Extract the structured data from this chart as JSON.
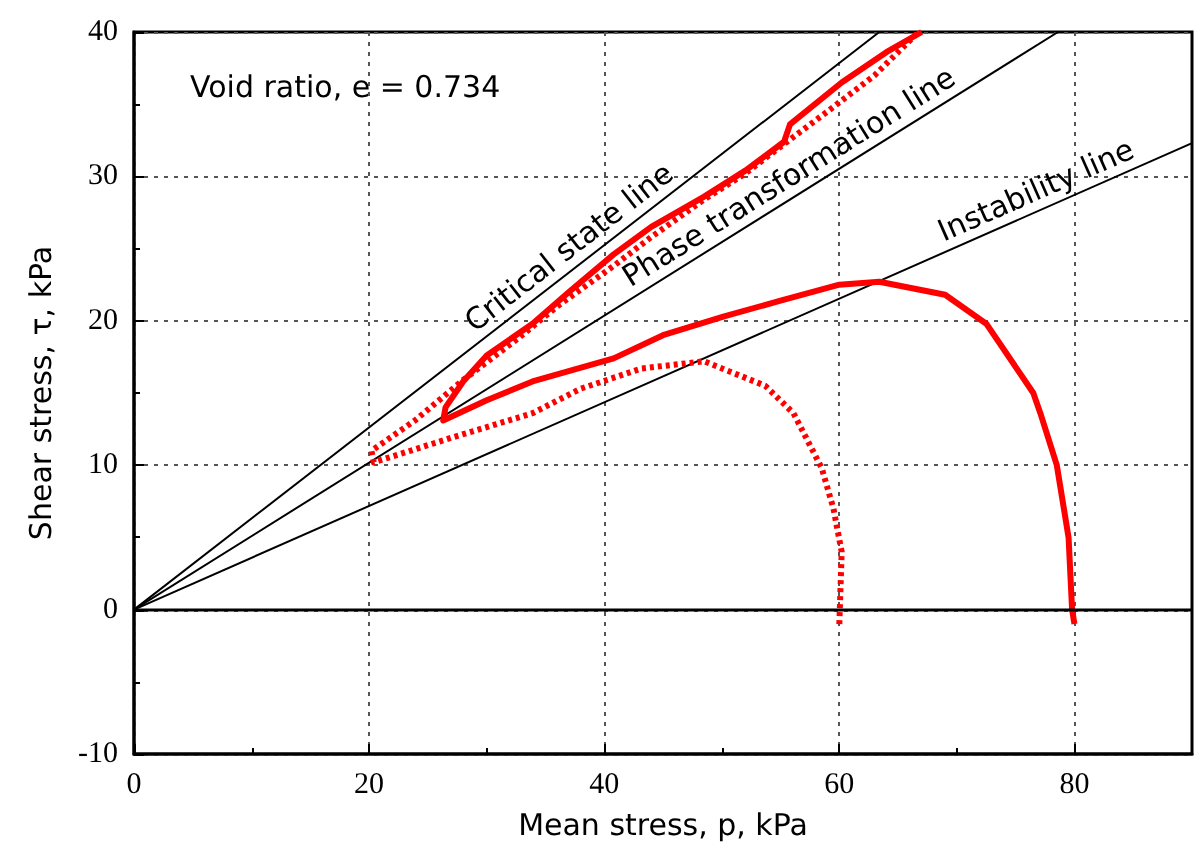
{
  "chart_data": {
    "type": "line",
    "xlabel": "Mean stress, p, kPa",
    "ylabel": "Shear stress, τ, kPa",
    "annotations": [
      "Void ratio, e = 0.734"
    ],
    "xlim": [
      0,
      90
    ],
    "ylim": [
      -10,
      40
    ],
    "xticks": [
      0,
      20,
      40,
      60,
      80
    ],
    "yticks": [
      -10,
      0,
      10,
      20,
      30,
      40
    ],
    "grid": true,
    "legend": false,
    "marker": "none",
    "ref_lines": [
      {
        "axis": "y",
        "value": 0,
        "color": "#000000"
      }
    ],
    "series": [
      {
        "name": "Critical state line",
        "color": "#000000",
        "line_style": "solid",
        "x": [
          0,
          63.4
        ],
        "values": [
          0,
          40
        ]
      },
      {
        "name": "Phase transformation line",
        "color": "#000000",
        "line_style": "solid",
        "x": [
          0,
          78.6
        ],
        "values": [
          0,
          40
        ]
      },
      {
        "name": "Instability line",
        "color": "#000000",
        "line_style": "solid",
        "x": [
          0,
          90
        ],
        "values": [
          0,
          32.3
        ]
      },
      {
        "color": "#ff0000",
        "line_style": "solid",
        "x": [
          80,
          79.8,
          79.5,
          78.5,
          77.1,
          76.5,
          72.5,
          69,
          63.4,
          60,
          55,
          50.2,
          45,
          40.8,
          33.9,
          30,
          26.3,
          26.5,
          28,
          30,
          33.9,
          37,
          40.8,
          44,
          48.5,
          52,
          55.3,
          55.8,
          60.2,
          64,
          67
        ],
        "values": [
          -1,
          0,
          5,
          10,
          13.6,
          15,
          19.8,
          21.8,
          22.7,
          22.5,
          21.4,
          20.3,
          19,
          17.4,
          15.8,
          14.5,
          13.1,
          14,
          15.8,
          17.6,
          19.8,
          22,
          24.6,
          26.5,
          28.6,
          30.4,
          32.4,
          33.6,
          36.5,
          38.6,
          40
        ]
      },
      {
        "color": "#ff0000",
        "line_style": "dotted",
        "x": [
          60,
          60.2,
          59.5,
          58.5,
          56.1,
          53.7,
          48.5,
          43.2,
          38,
          33.9,
          27,
          20.4,
          20.2,
          23.9,
          28,
          32.7,
          36,
          40.8,
          44,
          48.5,
          52,
          54.9,
          59,
          63,
          66.6
        ],
        "values": [
          -1,
          4,
          7,
          9.8,
          13.6,
          15.5,
          17.2,
          16.7,
          15.3,
          13.6,
          11.9,
          10.2,
          11,
          13.1,
          15.9,
          18.8,
          21,
          23.8,
          25.8,
          28.4,
          30.2,
          32,
          34.5,
          37,
          39.9
        ]
      }
    ]
  }
}
